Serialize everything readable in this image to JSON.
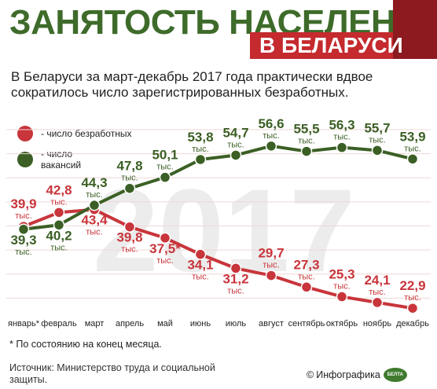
{
  "header": {
    "title": "ЗАНЯТОСТЬ НАСЕЛЕНИЯ",
    "subtitle": "В БЕЛАРУСИ"
  },
  "lead": "В Беларуси за март-декабрь 2017 года практически вдвое сократилось число зарегистрированных безработных.",
  "legend": {
    "unemployed": "- число безработных",
    "vacancies": "- число вакансий"
  },
  "footnote": "* По состоянию на конец месяца.",
  "source": "Источник: Министерство труда и социальной защиты.",
  "credit": {
    "copyright": "©",
    "text": "Инфографика",
    "logo_text": "БЕЛТА"
  },
  "colors": {
    "unemployed": "#c8353b",
    "vacancies": "#3b5f24",
    "title": "#3e6b2a",
    "accent": "#c42a2e"
  },
  "chart_data": {
    "type": "line",
    "categories": [
      "январь*",
      "февраль",
      "март",
      "апрель",
      "май",
      "июнь",
      "июль",
      "август",
      "сентябрь",
      "октябрь",
      "ноябрь",
      "декабрь"
    ],
    "series": [
      {
        "name": "- число безработных",
        "key": "unemployed",
        "values": [
          39.9,
          42.8,
          43.4,
          39.8,
          37.5,
          34.1,
          31.2,
          29.7,
          27.3,
          25.3,
          24.1,
          22.9
        ],
        "labels": [
          "39,9",
          "42,8",
          "43,4",
          "39,8",
          "37,5*",
          "34,1",
          "31,2",
          "29,7",
          "27,3",
          "25,3",
          "24,1",
          "22,9"
        ]
      },
      {
        "name": "- число вакансий",
        "key": "vacancies",
        "values": [
          39.3,
          40.2,
          44.3,
          47.8,
          50.1,
          53.8,
          54.7,
          56.6,
          55.5,
          56.3,
          55.7,
          53.9
        ],
        "labels": [
          "39,3",
          "40,2",
          "44,3",
          "47,8",
          "50,1",
          "53,8",
          "54,7",
          "56,6",
          "55,5",
          "56,3",
          "55,7",
          "53,9"
        ]
      }
    ],
    "unit": "тыс.",
    "watermark": "2017",
    "ylim": [
      20,
      60
    ],
    "grid": true
  }
}
